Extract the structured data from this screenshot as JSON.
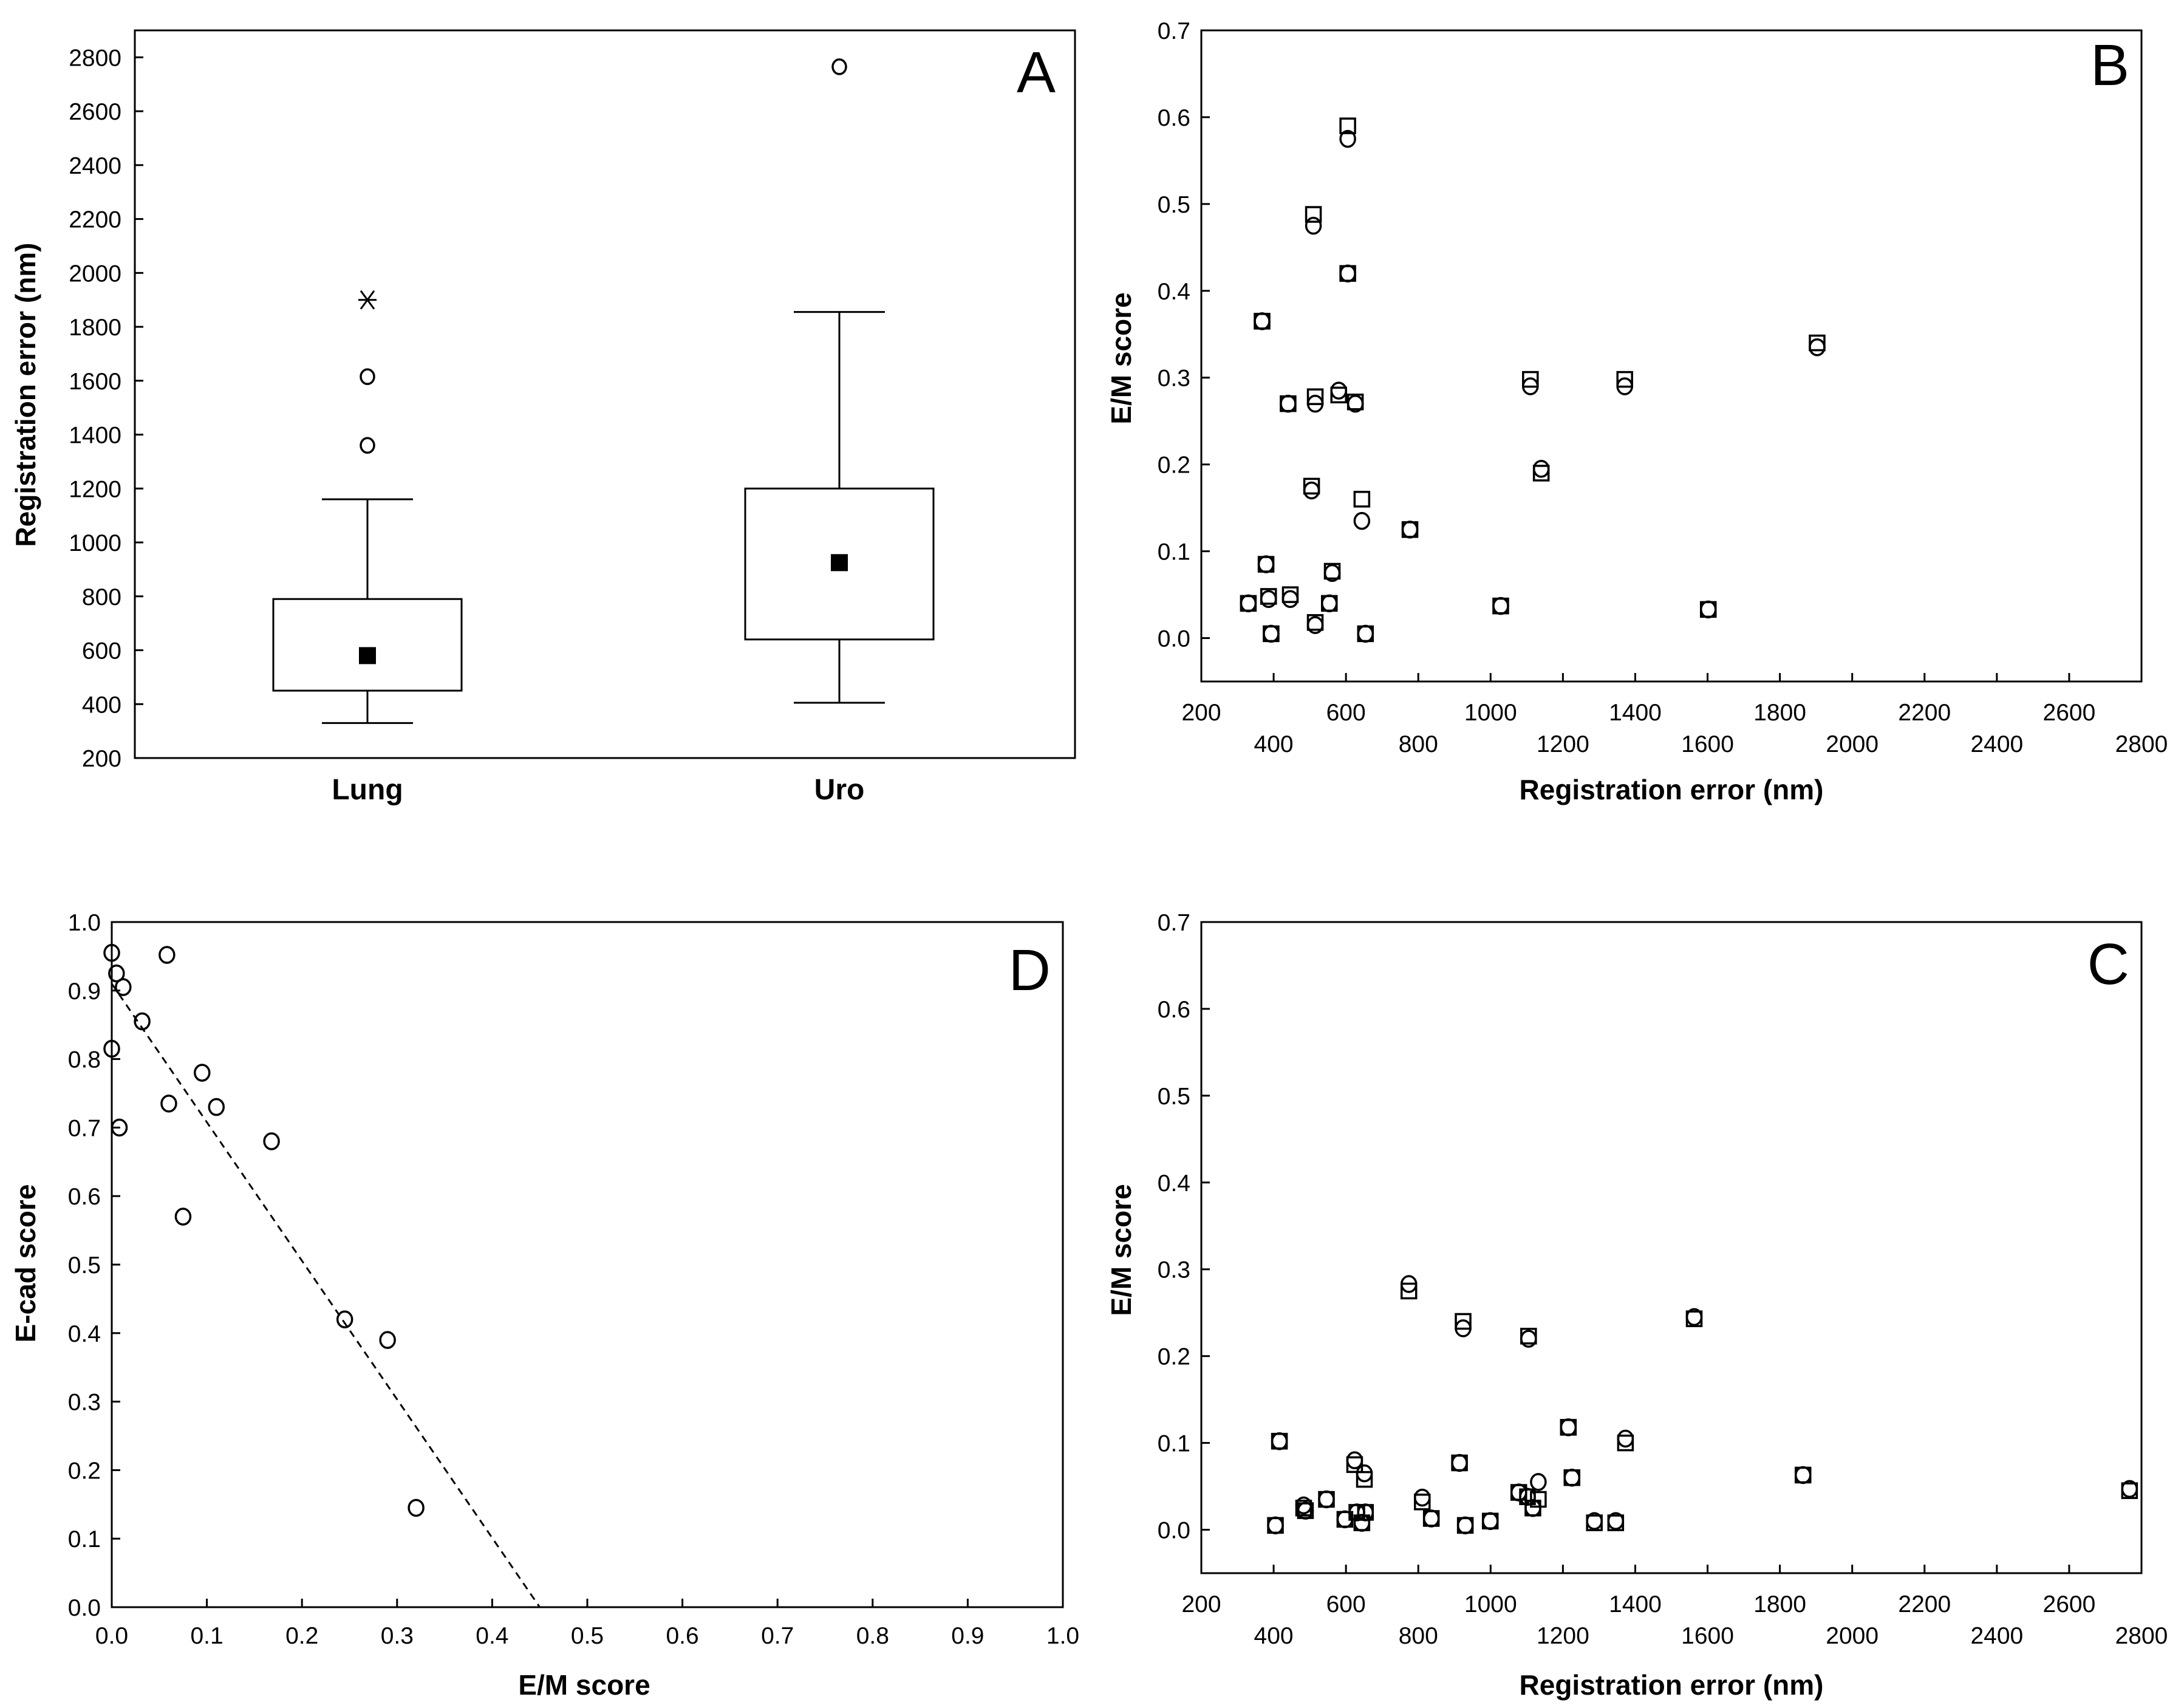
{
  "chart_data": [
    {
      "id": "A",
      "type": "box",
      "panel_label": "A",
      "title": "",
      "xlabel": "",
      "ylabel": "Registration error (nm)",
      "ylim": [
        200,
        2900
      ],
      "yticks": [
        200,
        400,
        600,
        800,
        1000,
        1200,
        1400,
        1600,
        1800,
        2000,
        2200,
        2400,
        2600,
        2800
      ],
      "categories": [
        "Lung",
        "Uro"
      ],
      "boxes": [
        {
          "name": "Lung",
          "whisker_low": 330,
          "q1": 450,
          "median": 580,
          "q3": 790,
          "whisker_high": 1160,
          "outliers": [
            1360,
            1615
          ],
          "extremes": [
            1900
          ]
        },
        {
          "name": "Uro",
          "whisker_low": 405,
          "q1": 640,
          "median": 925,
          "q3": 1200,
          "whisker_high": 1855,
          "outliers": [
            2765
          ],
          "extremes": []
        }
      ]
    },
    {
      "id": "B",
      "type": "scatter",
      "panel_label": "B",
      "title": "",
      "xlabel": "Registration error (nm)",
      "ylabel": "E/M score",
      "xlim": [
        200,
        2800
      ],
      "ylim": [
        -0.05,
        0.7
      ],
      "xticks": [
        200,
        400,
        600,
        800,
        1000,
        1200,
        1400,
        1600,
        1800,
        2000,
        2200,
        2400,
        2600,
        2800
      ],
      "yticks": [
        0.0,
        0.1,
        0.2,
        0.3,
        0.4,
        0.5,
        0.6,
        0.7
      ],
      "series": [
        {
          "name": "circles",
          "marker": "circle",
          "points": [
            [
              330,
              0.04
            ],
            [
              368,
              0.365
            ],
            [
              379,
              0.085
            ],
            [
              386,
              0.045
            ],
            [
              393,
              0.005
            ],
            [
              446,
              0.045
            ],
            [
              440,
              0.27
            ],
            [
              505,
              0.17
            ],
            [
              510,
              0.475
            ],
            [
              515,
              0.015
            ],
            [
              515,
              0.27
            ],
            [
              554,
              0.04
            ],
            [
              562,
              0.075
            ],
            [
              580,
              0.285
            ],
            [
              605,
              0.42
            ],
            [
              605,
              0.575
            ],
            [
              626,
              0.27
            ],
            [
              644,
              0.135
            ],
            [
              654,
              0.005
            ],
            [
              777,
              0.125
            ],
            [
              1028,
              0.037
            ],
            [
              1110,
              0.29
            ],
            [
              1140,
              0.195
            ],
            [
              1371,
              0.29
            ],
            [
              1602,
              0.033
            ],
            [
              1903,
              0.335
            ]
          ]
        },
        {
          "name": "squares",
          "marker": "square",
          "points": [
            [
              330,
              0.04
            ],
            [
              368,
              0.365
            ],
            [
              379,
              0.085
            ],
            [
              386,
              0.048
            ],
            [
              393,
              0.005
            ],
            [
              446,
              0.05
            ],
            [
              440,
              0.27
            ],
            [
              505,
              0.175
            ],
            [
              510,
              0.488
            ],
            [
              515,
              0.018
            ],
            [
              515,
              0.278
            ],
            [
              554,
              0.04
            ],
            [
              562,
              0.077
            ],
            [
              580,
              0.28
            ],
            [
              605,
              0.42
            ],
            [
              605,
              0.59
            ],
            [
              626,
              0.272
            ],
            [
              644,
              0.16
            ],
            [
              654,
              0.005
            ],
            [
              777,
              0.125
            ],
            [
              1028,
              0.037
            ],
            [
              1110,
              0.298
            ],
            [
              1140,
              0.19
            ],
            [
              1371,
              0.298
            ],
            [
              1602,
              0.033
            ],
            [
              1903,
              0.34
            ]
          ]
        }
      ]
    },
    {
      "id": "C",
      "type": "scatter",
      "panel_label": "C",
      "title": "",
      "xlabel": "Registration error (nm)",
      "ylabel": "E/M score",
      "xlim": [
        200,
        2800
      ],
      "ylim": [
        -0.05,
        0.7
      ],
      "xticks": [
        200,
        400,
        600,
        800,
        1000,
        1200,
        1400,
        1600,
        1800,
        2000,
        2200,
        2400,
        2600,
        2800
      ],
      "yticks": [
        0.0,
        0.1,
        0.2,
        0.3,
        0.4,
        0.5,
        0.6,
        0.7
      ],
      "series": [
        {
          "name": "circles",
          "marker": "circle",
          "points": [
            [
              405,
              0.005
            ],
            [
              416,
              0.102
            ],
            [
              483,
              0.028
            ],
            [
              488,
              0.022
            ],
            [
              546,
              0.035
            ],
            [
              597,
              0.012
            ],
            [
              624,
              0.08
            ],
            [
              630,
              0.02
            ],
            [
              644,
              0.008
            ],
            [
              651,
              0.065
            ],
            [
              654,
              0.02
            ],
            [
              774,
              0.283
            ],
            [
              811,
              0.037
            ],
            [
              836,
              0.013
            ],
            [
              914,
              0.077
            ],
            [
              924,
              0.232
            ],
            [
              930,
              0.005
            ],
            [
              999,
              0.01
            ],
            [
              1078,
              0.043
            ],
            [
              1102,
              0.038
            ],
            [
              1105,
              0.22
            ],
            [
              1117,
              0.025
            ],
            [
              1132,
              0.055
            ],
            [
              1215,
              0.118
            ],
            [
              1225,
              0.06
            ],
            [
              1287,
              0.01
            ],
            [
              1346,
              0.01
            ],
            [
              1373,
              0.105
            ],
            [
              1563,
              0.245
            ],
            [
              1864,
              0.063
            ],
            [
              2767,
              0.047
            ]
          ]
        },
        {
          "name": "squares",
          "marker": "square",
          "points": [
            [
              405,
              0.005
            ],
            [
              416,
              0.102
            ],
            [
              483,
              0.025
            ],
            [
              488,
              0.022
            ],
            [
              546,
              0.035
            ],
            [
              597,
              0.012
            ],
            [
              624,
              0.075
            ],
            [
              630,
              0.02
            ],
            [
              644,
              0.008
            ],
            [
              651,
              0.058
            ],
            [
              654,
              0.02
            ],
            [
              774,
              0.275
            ],
            [
              811,
              0.032
            ],
            [
              836,
              0.013
            ],
            [
              914,
              0.077
            ],
            [
              924,
              0.24
            ],
            [
              930,
              0.005
            ],
            [
              999,
              0.01
            ],
            [
              1078,
              0.043
            ],
            [
              1102,
              0.038
            ],
            [
              1105,
              0.223
            ],
            [
              1117,
              0.025
            ],
            [
              1132,
              0.035
            ],
            [
              1215,
              0.118
            ],
            [
              1225,
              0.06
            ],
            [
              1287,
              0.008
            ],
            [
              1346,
              0.008
            ],
            [
              1373,
              0.1
            ],
            [
              1563,
              0.243
            ],
            [
              1864,
              0.063
            ],
            [
              2767,
              0.045
            ]
          ]
        }
      ]
    },
    {
      "id": "D",
      "type": "scatter",
      "panel_label": "D",
      "title": "",
      "xlabel": "E/M score",
      "ylabel": "E-cad score",
      "xlim": [
        0.0,
        1.0
      ],
      "ylim": [
        0.0,
        1.0
      ],
      "xticks": [
        0.0,
        0.1,
        0.2,
        0.3,
        0.4,
        0.5,
        0.6,
        0.7,
        0.8,
        0.9,
        1.0
      ],
      "yticks": [
        0.0,
        0.1,
        0.2,
        0.3,
        0.4,
        0.5,
        0.6,
        0.7,
        0.8,
        0.9,
        1.0
      ],
      "series": [
        {
          "name": "points",
          "marker": "circle",
          "points": [
            [
              0.0,
              0.955
            ],
            [
              0.005,
              0.925
            ],
            [
              0.012,
              0.905
            ],
            [
              0.0,
              0.815
            ],
            [
              0.008,
              0.7
            ],
            [
              0.032,
              0.855
            ],
            [
              0.058,
              0.952
            ],
            [
              0.06,
              0.735
            ],
            [
              0.095,
              0.78
            ],
            [
              0.11,
              0.73
            ],
            [
              0.075,
              0.57
            ],
            [
              0.168,
              0.68
            ],
            [
              0.245,
              0.42
            ],
            [
              0.29,
              0.39
            ],
            [
              0.32,
              0.145
            ]
          ]
        }
      ],
      "fit_line": {
        "style": "dashed",
        "x": [
          0.0,
          0.45
        ],
        "y": [
          0.91,
          0.0
        ]
      }
    }
  ]
}
